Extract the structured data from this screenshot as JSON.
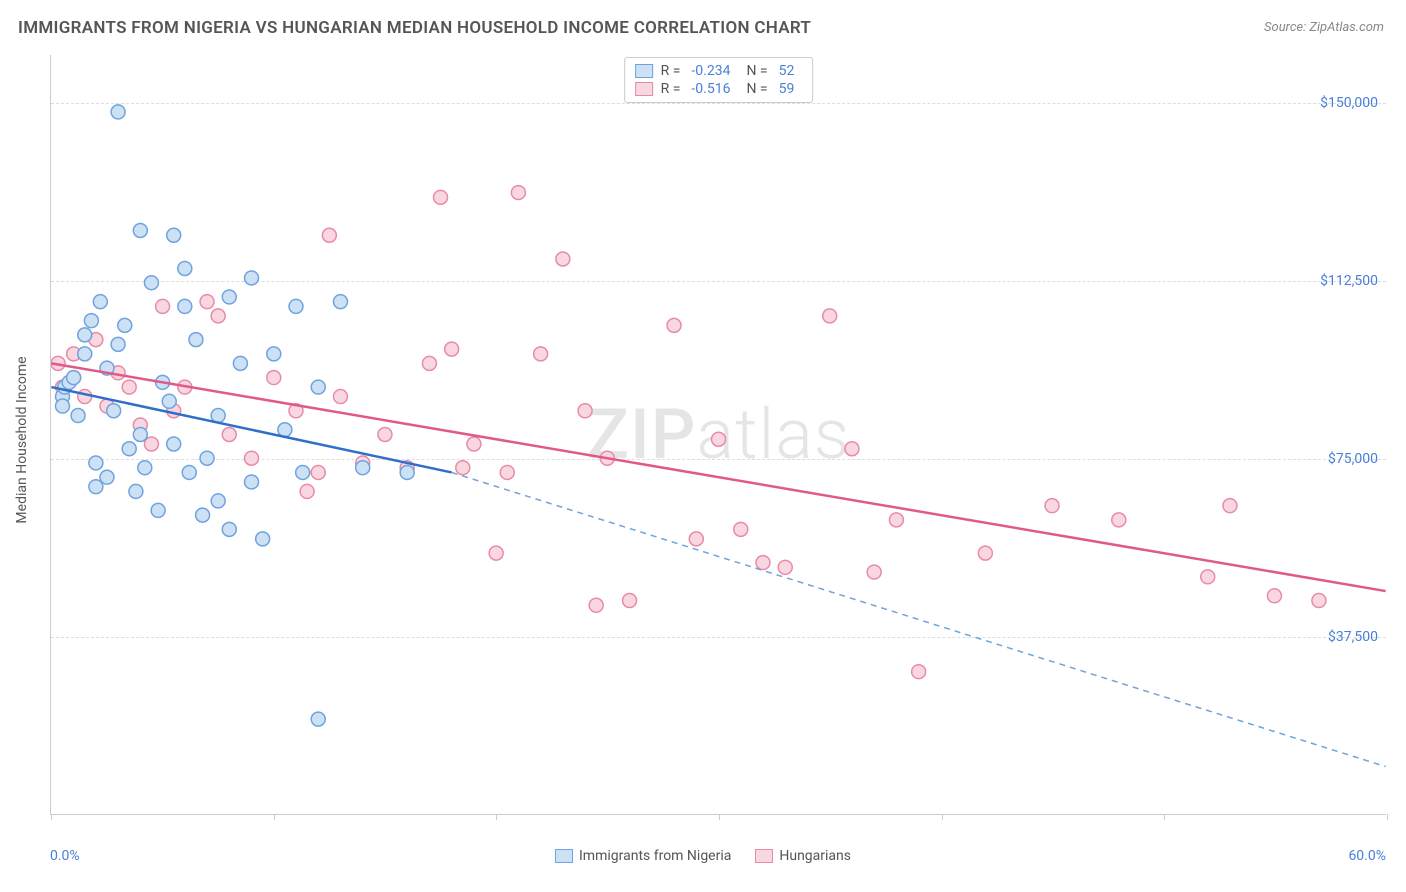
{
  "title": "IMMIGRANTS FROM NIGERIA VS HUNGARIAN MEDIAN HOUSEHOLD INCOME CORRELATION CHART",
  "source": "Source: ZipAtlas.com",
  "watermark_bold": "ZIP",
  "watermark_light": "atlas",
  "y_axis_label": "Median Household Income",
  "x_min_label": "0.0%",
  "x_max_label": "60.0%",
  "chart": {
    "type": "scatter",
    "background_color": "#ffffff",
    "grid_color": "#dddddd",
    "axis_color": "#cccccc",
    "xlim": [
      0,
      60
    ],
    "ylim": [
      0,
      160000
    ],
    "y_ticks": [
      37500,
      75000,
      112500,
      150000
    ],
    "y_tick_labels": [
      "$37,500",
      "$75,000",
      "$112,500",
      "$150,000"
    ],
    "x_ticks": [
      0,
      10,
      20,
      30,
      40,
      50,
      60
    ],
    "point_radius": 7,
    "point_stroke_width": 1.5,
    "trend_line_width": 2.5,
    "label_color": "#4a7fd8",
    "text_color": "#555555"
  },
  "series": [
    {
      "name": "Immigrants from Nigeria",
      "fill_color": "#cde1f5",
      "stroke_color": "#6fa3df",
      "line_color": "#2f6fc7",
      "R": "-0.234",
      "N": "52",
      "trend": {
        "x1": 0,
        "y1": 90000,
        "x2": 18,
        "y2": 72000,
        "x2_dash": 60,
        "y2_dash": 10000
      },
      "points": [
        [
          0.5,
          88000
        ],
        [
          0.5,
          86000
        ],
        [
          0.6,
          90000
        ],
        [
          0.8,
          91000
        ],
        [
          1.0,
          92000
        ],
        [
          1.2,
          84000
        ],
        [
          1.5,
          97000
        ],
        [
          1.5,
          101000
        ],
        [
          1.8,
          104000
        ],
        [
          2.0,
          69000
        ],
        [
          2.0,
          74000
        ],
        [
          2.2,
          108000
        ],
        [
          2.5,
          71000
        ],
        [
          2.5,
          94000
        ],
        [
          2.8,
          85000
        ],
        [
          3.0,
          148000
        ],
        [
          3.0,
          99000
        ],
        [
          3.3,
          103000
        ],
        [
          3.5,
          77000
        ],
        [
          3.8,
          68000
        ],
        [
          4.0,
          123000
        ],
        [
          4.0,
          80000
        ],
        [
          4.2,
          73000
        ],
        [
          4.5,
          112000
        ],
        [
          4.8,
          64000
        ],
        [
          5.0,
          91000
        ],
        [
          5.3,
          87000
        ],
        [
          5.5,
          122000
        ],
        [
          5.5,
          78000
        ],
        [
          6.0,
          115000
        ],
        [
          6.0,
          107000
        ],
        [
          6.2,
          72000
        ],
        [
          6.5,
          100000
        ],
        [
          6.8,
          63000
        ],
        [
          7.0,
          75000
        ],
        [
          7.5,
          66000
        ],
        [
          7.5,
          84000
        ],
        [
          8.0,
          109000
        ],
        [
          8.0,
          60000
        ],
        [
          8.5,
          95000
        ],
        [
          9.0,
          113000
        ],
        [
          9.0,
          70000
        ],
        [
          9.5,
          58000
        ],
        [
          10.0,
          97000
        ],
        [
          10.5,
          81000
        ],
        [
          11.0,
          107000
        ],
        [
          11.3,
          72000
        ],
        [
          12.0,
          90000
        ],
        [
          12.0,
          20000
        ],
        [
          13.0,
          108000
        ],
        [
          14.0,
          73000
        ],
        [
          16.0,
          72000
        ]
      ]
    },
    {
      "name": "Hungarians",
      "fill_color": "#f8d7e0",
      "stroke_color": "#e88ba7",
      "line_color": "#e05a87",
      "R": "-0.516",
      "N": "59",
      "trend": {
        "x1": 0,
        "y1": 95000,
        "x2": 60,
        "y2": 47000
      },
      "points": [
        [
          0.3,
          95000
        ],
        [
          0.5,
          90000
        ],
        [
          1.0,
          97000
        ],
        [
          1.0,
          92000
        ],
        [
          1.5,
          88000
        ],
        [
          2.0,
          100000
        ],
        [
          2.5,
          86000
        ],
        [
          3.0,
          93000
        ],
        [
          3.5,
          90000
        ],
        [
          4.0,
          82000
        ],
        [
          4.5,
          78000
        ],
        [
          5.0,
          107000
        ],
        [
          5.5,
          85000
        ],
        [
          6.0,
          90000
        ],
        [
          7.0,
          108000
        ],
        [
          7.5,
          105000
        ],
        [
          8.0,
          80000
        ],
        [
          9.0,
          75000
        ],
        [
          10.0,
          92000
        ],
        [
          11.0,
          85000
        ],
        [
          11.5,
          68000
        ],
        [
          12.0,
          72000
        ],
        [
          12.5,
          122000
        ],
        [
          13.0,
          88000
        ],
        [
          14.0,
          74000
        ],
        [
          15.0,
          80000
        ],
        [
          16.0,
          73000
        ],
        [
          17.0,
          95000
        ],
        [
          17.5,
          130000
        ],
        [
          18.0,
          98000
        ],
        [
          18.5,
          73000
        ],
        [
          19.0,
          78000
        ],
        [
          20.0,
          55000
        ],
        [
          20.5,
          72000
        ],
        [
          21.0,
          131000
        ],
        [
          22.0,
          97000
        ],
        [
          23.0,
          117000
        ],
        [
          24.0,
          85000
        ],
        [
          24.5,
          44000
        ],
        [
          25.0,
          75000
        ],
        [
          26.0,
          45000
        ],
        [
          28.0,
          103000
        ],
        [
          29.0,
          58000
        ],
        [
          30.0,
          79000
        ],
        [
          31.0,
          60000
        ],
        [
          32.0,
          53000
        ],
        [
          33.0,
          52000
        ],
        [
          35.0,
          105000
        ],
        [
          36.0,
          77000
        ],
        [
          37.0,
          51000
        ],
        [
          38.0,
          62000
        ],
        [
          39.0,
          30000
        ],
        [
          42.0,
          55000
        ],
        [
          45.0,
          65000
        ],
        [
          48.0,
          62000
        ],
        [
          52.0,
          50000
        ],
        [
          53.0,
          65000
        ],
        [
          55.0,
          46000
        ],
        [
          57.0,
          45000
        ]
      ]
    }
  ],
  "legend_top": {
    "r_label": "R =",
    "n_label": "N ="
  },
  "legend_bottom": [
    {
      "label": "Immigrants from Nigeria",
      "fill": "#cde1f5",
      "stroke": "#6fa3df"
    },
    {
      "label": "Hungarians",
      "fill": "#f8d7e0",
      "stroke": "#e88ba7"
    }
  ]
}
